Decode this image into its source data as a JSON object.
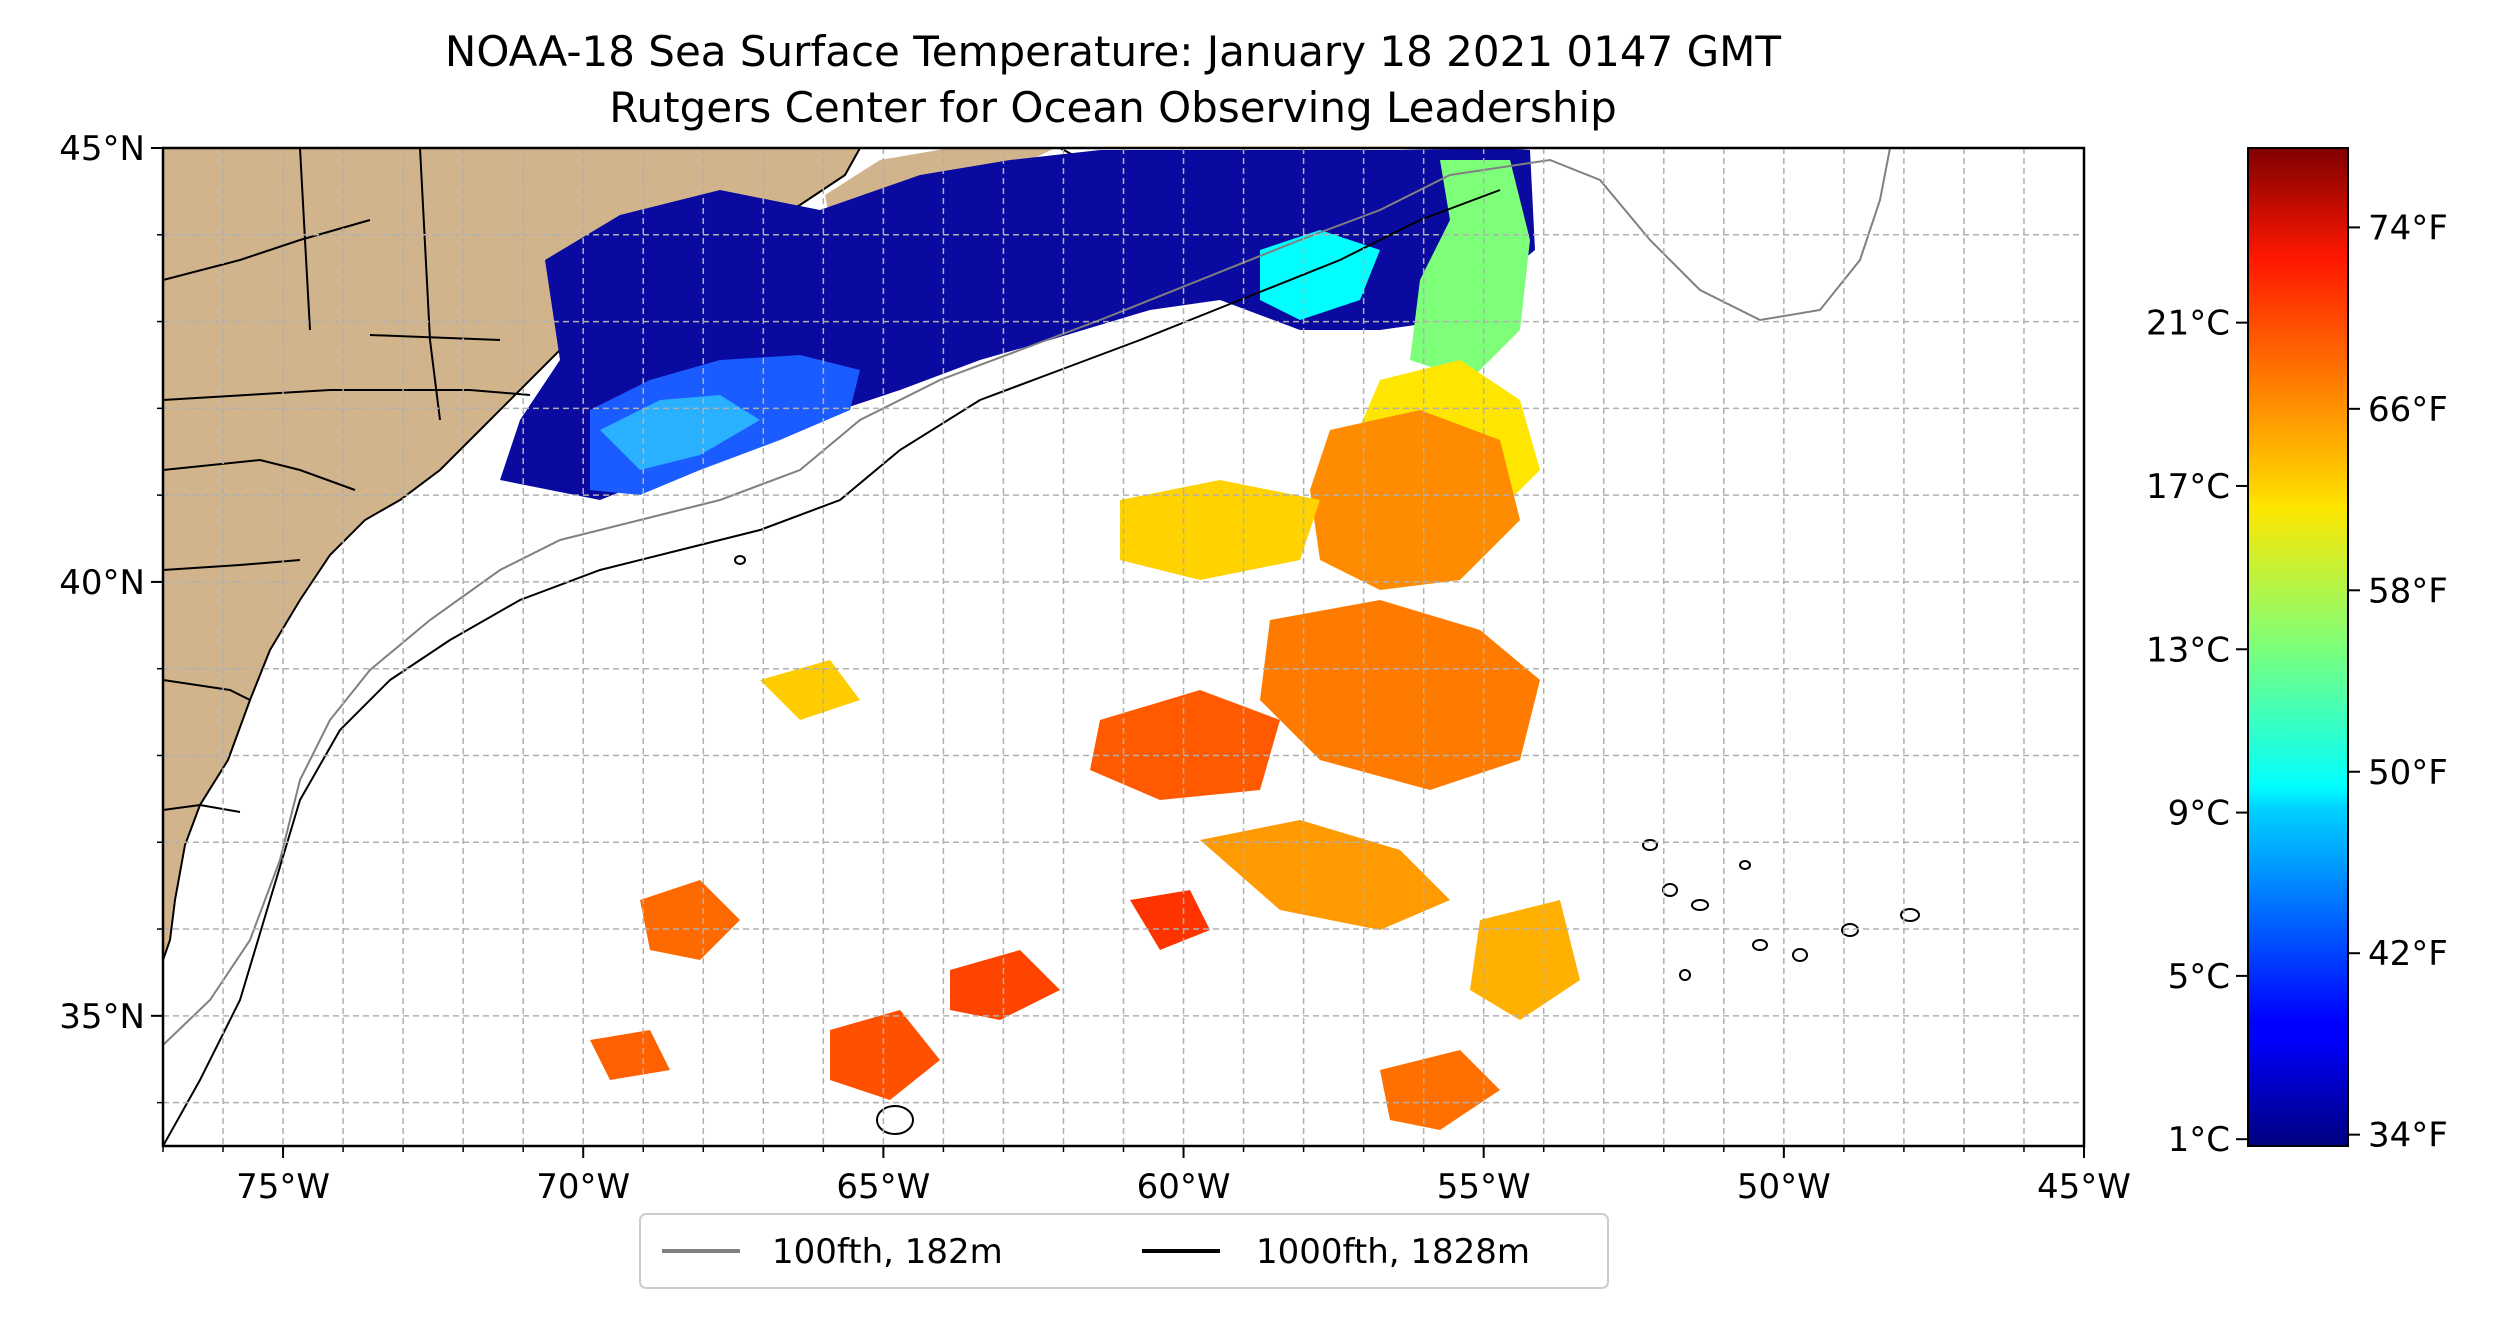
{
  "title_line1": "NOAA-18 Sea Surface Temperature: January 18 2021 0147 GMT",
  "title_line2": "Rutgers Center for Ocean Observing Leadership",
  "map": {
    "lon_range": [
      -77,
      -45
    ],
    "lat_range": [
      33.5,
      45
    ],
    "gridlines": true,
    "lon_ticks": [
      {
        "value": -75,
        "label": "75°W"
      },
      {
        "value": -70,
        "label": "70°W"
      },
      {
        "value": -65,
        "label": "65°W"
      },
      {
        "value": -60,
        "label": "60°W"
      },
      {
        "value": -55,
        "label": "55°W"
      },
      {
        "value": -50,
        "label": "50°W"
      },
      {
        "value": -45,
        "label": "45°W"
      }
    ],
    "lat_ticks": [
      {
        "value": 45,
        "label": "45°N"
      },
      {
        "value": 40,
        "label": "40°N"
      },
      {
        "value": 35,
        "label": "35°N"
      }
    ],
    "land_color": "#d2b48c",
    "ocean_color": "#ffffff"
  },
  "colorbar": {
    "colormap": "jet",
    "range_f": [
      33.5,
      77.5
    ],
    "fahrenheit_ticks": [
      {
        "value": 74,
        "label": "74°F"
      },
      {
        "value": 66,
        "label": "66°F"
      },
      {
        "value": 58,
        "label": "58°F"
      },
      {
        "value": 50,
        "label": "50°F"
      },
      {
        "value": 42,
        "label": "42°F"
      },
      {
        "value": 34,
        "label": "34°F"
      }
    ],
    "celsius_ticks": [
      {
        "value": 21,
        "label": "21°C"
      },
      {
        "value": 17,
        "label": "17°C"
      },
      {
        "value": 13,
        "label": "13°C"
      },
      {
        "value": 9,
        "label": "9°C"
      },
      {
        "value": 5,
        "label": "5°C"
      },
      {
        "value": 1,
        "label": "1°C"
      }
    ]
  },
  "legend": {
    "placement": "bottom-center",
    "items": [
      {
        "label": "100fth, 182m",
        "color": "#808080"
      },
      {
        "label": "1000fth, 1828m",
        "color": "#000000"
      }
    ]
  }
}
